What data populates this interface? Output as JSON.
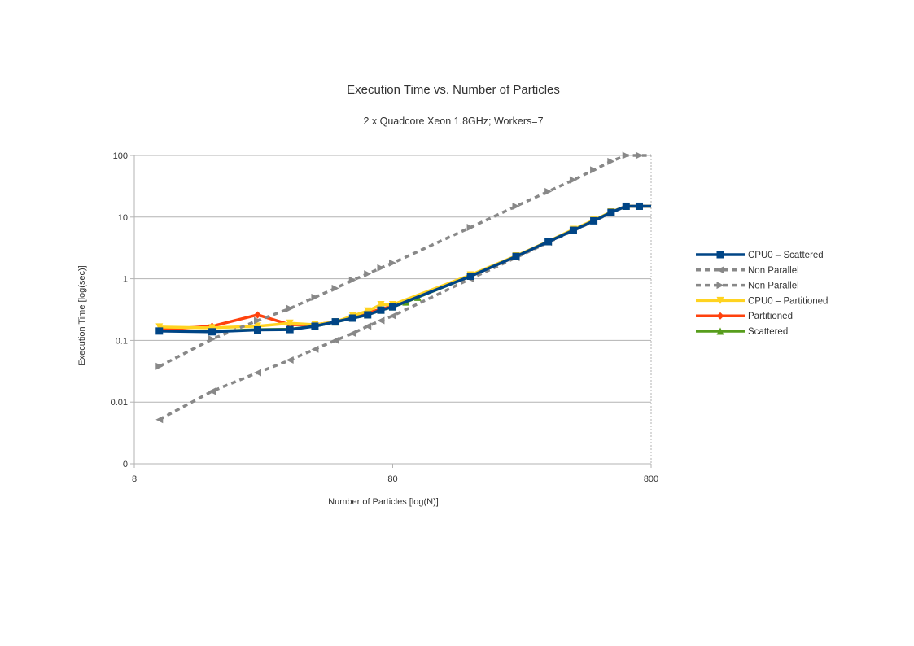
{
  "chart_data": {
    "type": "line",
    "title": "Execution Time vs. Number of Particles",
    "subtitle": "2 x Quadcore Xeon 1.8GHz; Workers=7",
    "xlabel": "Number of Particles [log(N)]",
    "ylabel": "Execution Time [log(sec)]",
    "x_scale": "log",
    "y_scale": "log",
    "xlim": [
      8,
      800
    ],
    "ylim": [
      0.001,
      100
    ],
    "x_ticks": [
      {
        "value": 8,
        "label": "8"
      },
      {
        "value": 80,
        "label": "80"
      },
      {
        "value": 800,
        "label": "800"
      }
    ],
    "y_ticks": [
      {
        "value": 0.001,
        "label": "0"
      },
      {
        "value": 0.01,
        "label": "0.01"
      },
      {
        "value": 0.1,
        "label": "0.1"
      },
      {
        "value": 1,
        "label": "1"
      },
      {
        "value": 10,
        "label": "10"
      },
      {
        "value": 100,
        "label": "100"
      }
    ],
    "grid": "horizontal",
    "legend_position": "right",
    "series": [
      {
        "name": "Scattered",
        "color": "#579d1c",
        "dash": false,
        "marker": "triangle-up",
        "x": [
          10,
          16,
          24,
          32,
          40,
          48,
          56,
          64,
          72,
          80,
          90,
          100,
          160,
          240,
          320,
          400,
          480,
          560,
          640,
          720,
          800
        ],
        "y": [
          0.145,
          0.14,
          0.15,
          0.152,
          0.17,
          0.2,
          0.23,
          0.26,
          0.31,
          0.35,
          0.42,
          0.5,
          1.1,
          2.3,
          4.0,
          6.2,
          8.8,
          12.0,
          15.0,
          15.0,
          15.0
        ]
      },
      {
        "name": "Partitioned",
        "color": "#ff420e",
        "dash": false,
        "marker": "diamond",
        "x": [
          10,
          16,
          24,
          32,
          40,
          48,
          56,
          64,
          72,
          80,
          160,
          240,
          320,
          400,
          480,
          560,
          640,
          720,
          800
        ],
        "y": [
          0.15,
          0.17,
          0.26,
          0.18,
          0.18,
          0.2,
          0.24,
          0.28,
          0.32,
          0.36,
          1.1,
          2.3,
          4.0,
          6.2,
          8.8,
          12.0,
          15.0,
          15.0,
          15.0
        ]
      },
      {
        "name": "CPU0 – Partitioned",
        "color": "#ffd320",
        "dash": false,
        "marker": "triangle-down",
        "x": [
          10,
          16,
          24,
          32,
          40,
          48,
          56,
          64,
          72,
          80,
          160,
          240,
          320,
          400,
          480,
          560,
          640,
          720,
          800
        ],
        "y": [
          0.165,
          0.16,
          0.17,
          0.19,
          0.18,
          0.2,
          0.25,
          0.3,
          0.38,
          0.38,
          1.15,
          2.35,
          4.05,
          6.3,
          8.9,
          12.1,
          15.0,
          15.0,
          15.0
        ]
      },
      {
        "name": "Non Parallel",
        "color": "#888888",
        "dash": true,
        "marker": "triangle-right",
        "x": [
          10,
          16,
          24,
          32,
          40,
          48,
          56,
          64,
          72,
          80,
          160,
          240,
          320,
          400,
          480,
          560,
          640,
          720,
          800
        ],
        "y": [
          0.038,
          0.105,
          0.21,
          0.33,
          0.5,
          0.7,
          0.95,
          1.2,
          1.5,
          1.8,
          6.8,
          15.0,
          26.0,
          40.0,
          58.0,
          80.0,
          100.0,
          100.0,
          100.0
        ]
      },
      {
        "name": "Non Parallel",
        "color": "#888888",
        "dash": true,
        "marker": "triangle-left",
        "x": [
          10,
          16,
          24,
          32,
          40,
          48,
          56,
          64,
          72,
          80,
          160,
          240,
          320,
          400,
          480,
          560,
          640,
          720,
          800
        ],
        "y": [
          0.0052,
          0.015,
          0.03,
          0.048,
          0.072,
          0.1,
          0.13,
          0.17,
          0.21,
          0.25,
          1.0,
          2.2,
          3.9,
          6.0,
          8.6,
          11.8,
          15.0,
          15.0,
          15.0
        ]
      },
      {
        "name": "CPU0 – Scattered",
        "color": "#004586",
        "dash": false,
        "marker": "square",
        "x": [
          10,
          16,
          24,
          32,
          40,
          48,
          56,
          64,
          72,
          80,
          160,
          240,
          320,
          400,
          480,
          560,
          640,
          720,
          800
        ],
        "y": [
          0.142,
          0.138,
          0.148,
          0.15,
          0.17,
          0.2,
          0.23,
          0.26,
          0.31,
          0.35,
          1.1,
          2.3,
          4.0,
          6.1,
          8.7,
          11.9,
          15.0,
          15.0,
          15.0
        ]
      }
    ],
    "legend_order": [
      5,
      4,
      3,
      2,
      1,
      0
    ]
  }
}
